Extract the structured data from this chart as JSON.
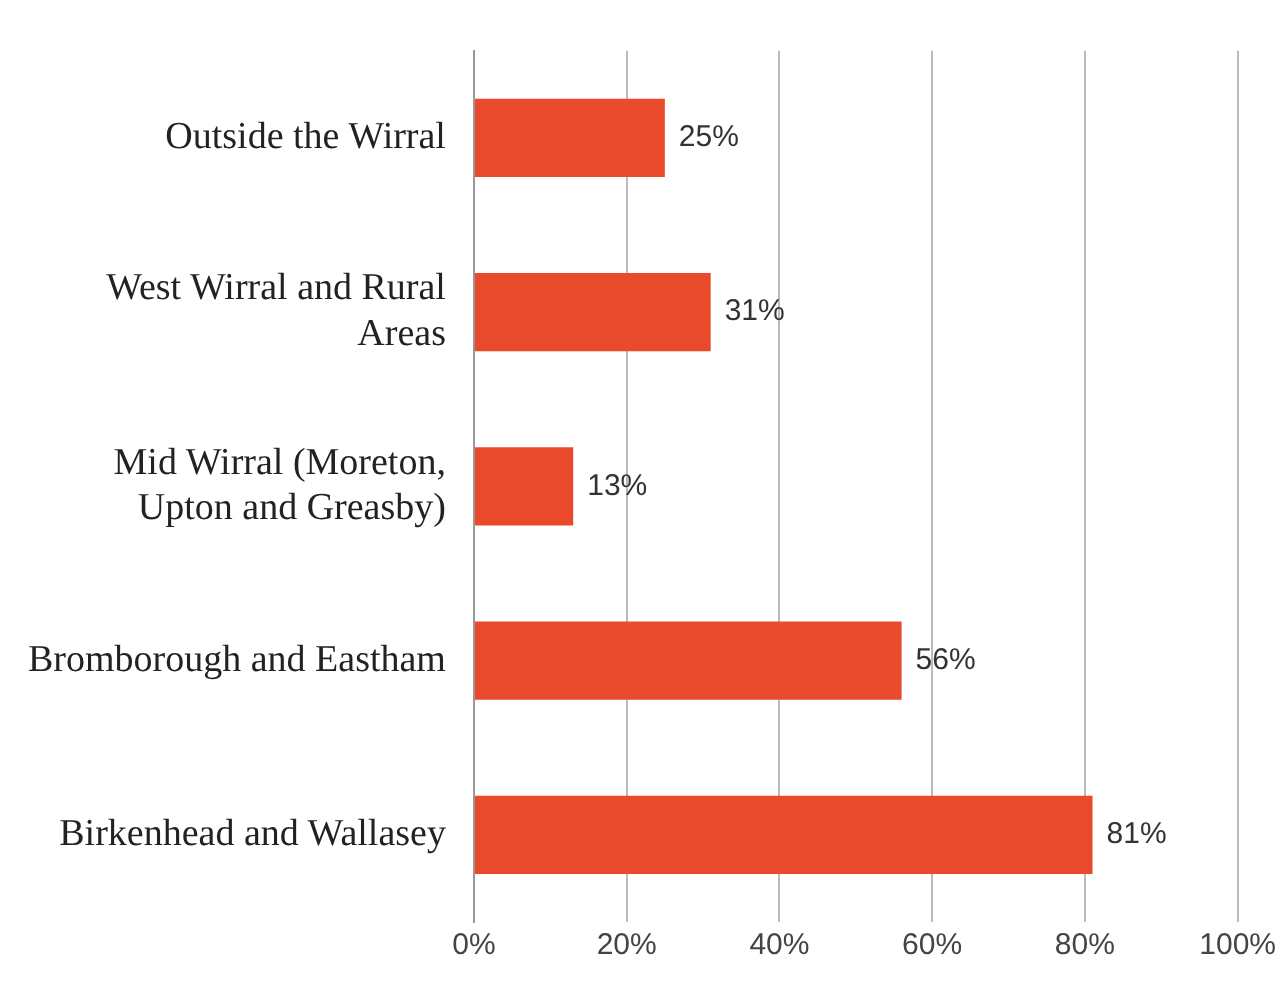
{
  "chart_data": {
    "type": "bar",
    "orientation": "horizontal",
    "categories": [
      "Outside the Wirral",
      "West Wirral and Rural Areas",
      "Mid Wirral (Moreton, Upton and Greasby)",
      "Bromborough and Eastham",
      "Birkenhead and Wallasey"
    ],
    "values": [
      25,
      31,
      13,
      56,
      81
    ],
    "value_labels": [
      "25%",
      "31%",
      "13%",
      "56%",
      "81%"
    ],
    "color": "#ea4a2c",
    "xlim": [
      0,
      100
    ],
    "xticks": [
      {
        "value": 0,
        "label": "0%"
      },
      {
        "value": 20,
        "label": "20%"
      },
      {
        "value": 40,
        "label": "40%"
      },
      {
        "value": 60,
        "label": "60%"
      },
      {
        "value": 80,
        "label": "80%"
      },
      {
        "value": 100,
        "label": "100%"
      }
    ],
    "grid": "x",
    "legend": false
  }
}
